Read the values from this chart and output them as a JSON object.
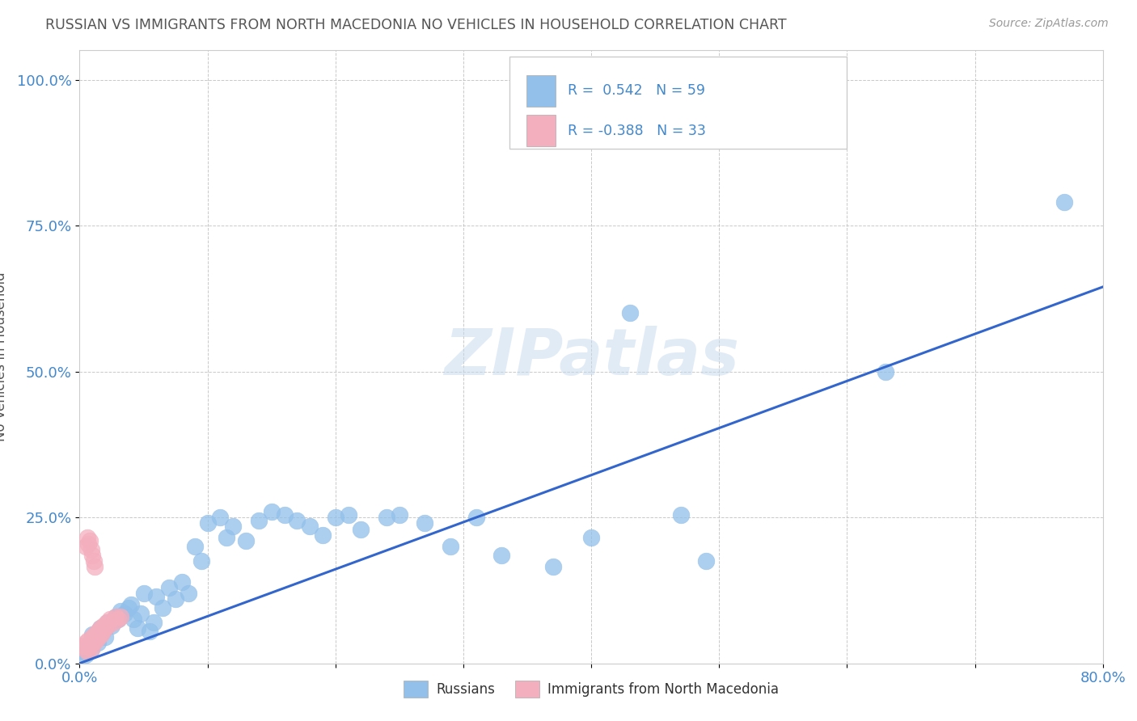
{
  "title": "RUSSIAN VS IMMIGRANTS FROM NORTH MACEDONIA NO VEHICLES IN HOUSEHOLD CORRELATION CHART",
  "source": "Source: ZipAtlas.com",
  "ylabel": "No Vehicles in Household",
  "watermark": "ZIPatlas",
  "xlim": [
    0.0,
    0.8
  ],
  "ylim": [
    0.0,
    1.05
  ],
  "ytick_labels": [
    "0.0%",
    "25.0%",
    "50.0%",
    "75.0%",
    "100.0%"
  ],
  "ytick_values": [
    0.0,
    0.25,
    0.5,
    0.75,
    1.0
  ],
  "legend_r1": "R =  0.542",
  "legend_n1": "N = 59",
  "legend_r2": "R = -0.388",
  "legend_n2": "N = 33",
  "blue_color": "#92C0EA",
  "pink_color": "#F4AFBE",
  "line_color": "#3366CC",
  "title_color": "#555555",
  "label_color": "#4488CC",
  "grid_color": "#BBBBBB",
  "russians_x": [
    0.003,
    0.005,
    0.007,
    0.009,
    0.01,
    0.012,
    0.014,
    0.016,
    0.018,
    0.02,
    0.022,
    0.025,
    0.028,
    0.03,
    0.032,
    0.035,
    0.038,
    0.04,
    0.042,
    0.045,
    0.048,
    0.05,
    0.055,
    0.058,
    0.06,
    0.065,
    0.07,
    0.075,
    0.08,
    0.085,
    0.09,
    0.095,
    0.1,
    0.11,
    0.115,
    0.12,
    0.13,
    0.14,
    0.15,
    0.16,
    0.17,
    0.18,
    0.19,
    0.2,
    0.21,
    0.22,
    0.24,
    0.25,
    0.27,
    0.29,
    0.31,
    0.33,
    0.37,
    0.4,
    0.43,
    0.47,
    0.49,
    0.63,
    0.77
  ],
  "russians_y": [
    0.02,
    0.015,
    0.03,
    0.025,
    0.05,
    0.04,
    0.035,
    0.06,
    0.055,
    0.045,
    0.07,
    0.065,
    0.08,
    0.075,
    0.09,
    0.085,
    0.095,
    0.1,
    0.075,
    0.06,
    0.085,
    0.12,
    0.055,
    0.07,
    0.115,
    0.095,
    0.13,
    0.11,
    0.14,
    0.12,
    0.2,
    0.175,
    0.24,
    0.25,
    0.215,
    0.235,
    0.21,
    0.245,
    0.26,
    0.255,
    0.245,
    0.235,
    0.22,
    0.25,
    0.255,
    0.23,
    0.25,
    0.255,
    0.24,
    0.2,
    0.25,
    0.185,
    0.165,
    0.215,
    0.6,
    0.255,
    0.175,
    0.5,
    0.79
  ],
  "macedonia_x": [
    0.003,
    0.004,
    0.005,
    0.006,
    0.007,
    0.008,
    0.009,
    0.01,
    0.011,
    0.012,
    0.013,
    0.014,
    0.015,
    0.016,
    0.017,
    0.018,
    0.019,
    0.02,
    0.021,
    0.022,
    0.024,
    0.026,
    0.028,
    0.03,
    0.032,
    0.005,
    0.006,
    0.007,
    0.008,
    0.009,
    0.01,
    0.011,
    0.012
  ],
  "macedonia_y": [
    0.03,
    0.025,
    0.035,
    0.02,
    0.04,
    0.03,
    0.025,
    0.045,
    0.035,
    0.05,
    0.04,
    0.055,
    0.045,
    0.06,
    0.05,
    0.055,
    0.065,
    0.06,
    0.07,
    0.065,
    0.075,
    0.07,
    0.08,
    0.075,
    0.08,
    0.2,
    0.215,
    0.205,
    0.21,
    0.195,
    0.185,
    0.175,
    0.165
  ],
  "line_x0": 0.0,
  "line_y0": 0.0,
  "line_x1": 0.8,
  "line_y1": 0.645
}
